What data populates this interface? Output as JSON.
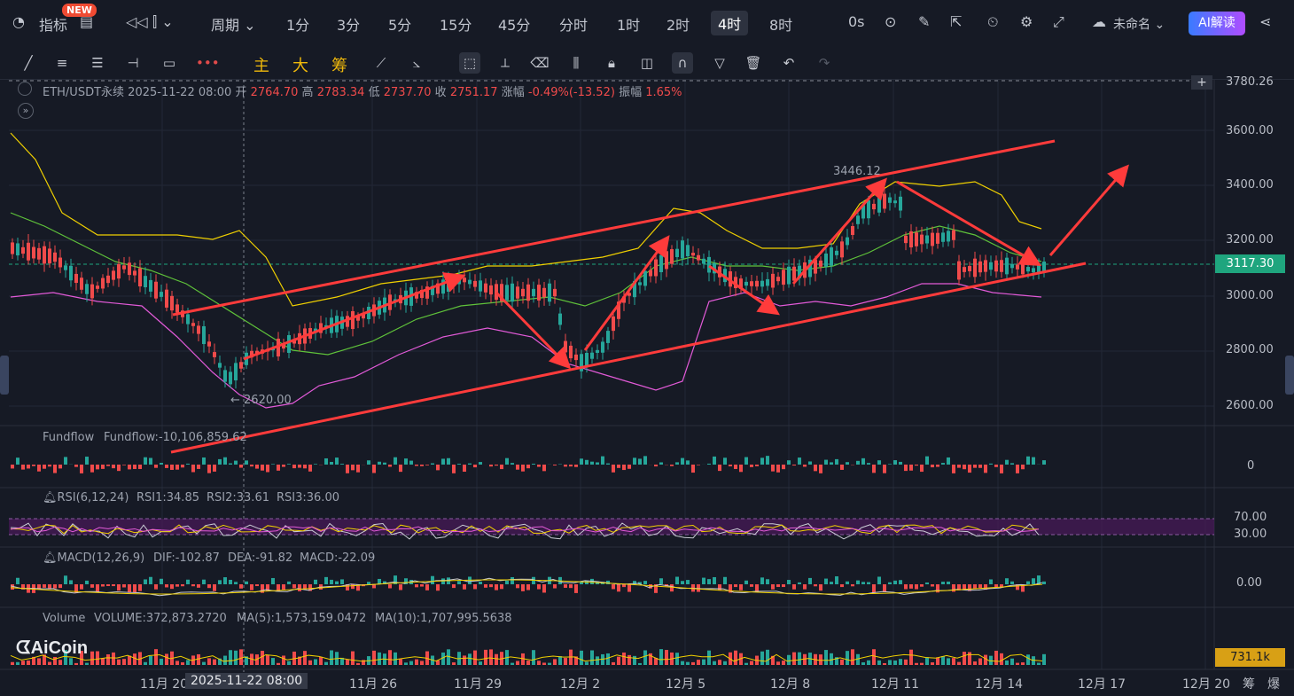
{
  "topbar": {
    "indicators": "指标",
    "new_badge": "NEW",
    "period": "周期",
    "timeframes": [
      "1分",
      "3分",
      "5分",
      "15分",
      "45分",
      "分时",
      "1时",
      "2时",
      "4时",
      "8时"
    ],
    "active_timeframe": "4时",
    "seconds": "0s",
    "layout_name": "未命名",
    "ai_button": "AI解读"
  },
  "toolbar": {
    "main_label": "主",
    "large_label": "大",
    "chips_label": "筹"
  },
  "instrument": {
    "symbol": "ETH/USDT永续",
    "datetime": "2025-11-22 08:00",
    "open_label": "开",
    "open": "2764.70",
    "high_label": "高",
    "high": "2783.34",
    "low_label": "低",
    "low": "2737.70",
    "close_label": "收",
    "close": "2751.17",
    "change_label": "涨幅",
    "change": "-0.49%(-13.52)",
    "amplitude_label": "振幅",
    "amplitude": "1.65%"
  },
  "price_axis": {
    "top_value": "3780.26",
    "ticks": [
      "3600.00",
      "3400.00",
      "3200.00",
      "3000.00",
      "2800.00",
      "2600.00"
    ],
    "current_price": "3117.30"
  },
  "annotations": {
    "high_marker": "3446.12",
    "low_marker": "2620.00"
  },
  "fundflow": {
    "title": "Fundflow",
    "value_text": "Fundflow:-10,106,859.62",
    "axis_zero": "0"
  },
  "rsi": {
    "title": "RSI(6,12,24)",
    "rsi1": "RSI1:34.85",
    "rsi2": "RSI2:33.61",
    "rsi3": "RSI3:36.00",
    "upper": "70.00",
    "lower": "30.00"
  },
  "macd": {
    "title": "MACD(12,26,9)",
    "dif": "DIF:-102.87",
    "dea": "DEA:-91.82",
    "macd": "MACD:-22.09",
    "axis_zero": "0.00"
  },
  "volume": {
    "title": "Volume",
    "volume": "VOLUME:372,873.2720",
    "ma5": "MA(5):1,573,159.0472",
    "ma10": "MA(10):1,707,995.5638",
    "current": "731.1k"
  },
  "dates": [
    "11月 20",
    "2025-11-22 08:00",
    "11月 26",
    "11月 29",
    "12月 2",
    "12月 5",
    "12月 8",
    "12月 11",
    "12月 14",
    "12月 17",
    "12月 20"
  ],
  "bottom_right": [
    "筹",
    "爆"
  ],
  "logo_text": "AiCoin",
  "colors": {
    "up": "#26a69a",
    "down": "#f04b4b",
    "channel": "#ff3b3b",
    "boll_upper": "#f0d000",
    "boll_mid": "#5fc23a",
    "boll_lower": "#e25ad8"
  }
}
